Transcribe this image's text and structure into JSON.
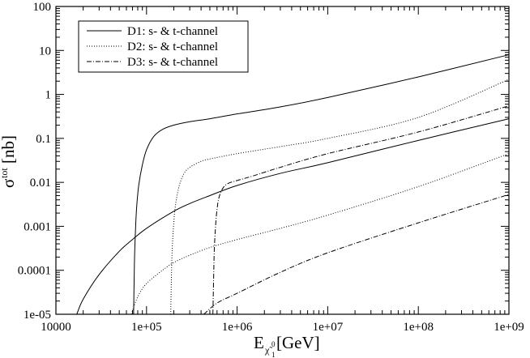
{
  "chart_data": {
    "type": "line",
    "title": "",
    "xlabel": {
      "main": "E",
      "subscript": "χ̃",
      "subsubscript": "1",
      "superscript": "0",
      "unit": "[GeV]"
    },
    "ylabel": {
      "main": "σ",
      "superscript": "tot",
      "unit": "[nb]"
    },
    "xscale": "log",
    "yscale": "log",
    "xlim": [
      10000,
      1000000000
    ],
    "ylim": [
      1e-05,
      100
    ],
    "grid": false,
    "legend_position": "top-left",
    "x_ticks": [
      {
        "value": 10000,
        "label": "10000"
      },
      {
        "value": 100000,
        "label": "1e+05"
      },
      {
        "value": 1000000,
        "label": "1e+06"
      },
      {
        "value": 10000000,
        "label": "1e+07"
      },
      {
        "value": 100000000,
        "label": "1e+08"
      },
      {
        "value": 1000000000,
        "label": "1e+09"
      }
    ],
    "y_ticks": [
      {
        "value": 1e-05,
        "label": "1e-05"
      },
      {
        "value": 0.0001,
        "label": "0.0001"
      },
      {
        "value": 0.001,
        "label": "0.001"
      },
      {
        "value": 0.01,
        "label": "0.01"
      },
      {
        "value": 0.1,
        "label": "0.1"
      },
      {
        "value": 1,
        "label": "1"
      },
      {
        "value": 10,
        "label": "10"
      },
      {
        "value": 100,
        "label": "100"
      }
    ],
    "legend": [
      {
        "label": "D1: s- & t-channel",
        "style": "solid"
      },
      {
        "label": "D2: s- & t-channel",
        "style": "dotted"
      },
      {
        "label": "D3: s- & t-channel",
        "style": "dashdot"
      }
    ],
    "series": [
      {
        "style": "solid",
        "x": [
          72000,
          73000,
          74000,
          76000,
          78000,
          82000,
          90000,
          100000,
          120000,
          150000,
          200000,
          300000,
          500000,
          1000000,
          3000000,
          10000000,
          100000000,
          1000000000
        ],
        "y": [
          1e-05,
          6e-05,
          0.00025,
          0.0011,
          0.0029,
          0.0085,
          0.025,
          0.055,
          0.11,
          0.16,
          0.2,
          0.24,
          0.28,
          0.36,
          0.52,
          0.85,
          2.5,
          8
        ]
      },
      {
        "style": "solid",
        "x": [
          17000,
          20000,
          30000,
          50000,
          70000,
          100000,
          200000,
          300000,
          500000,
          1000000,
          3000000,
          10000000,
          100000000,
          1000000000
        ],
        "y": [
          1e-05,
          2.2e-05,
          8e-05,
          0.00027,
          0.0005,
          0.0009,
          0.0022,
          0.0033,
          0.005,
          0.0085,
          0.016,
          0.028,
          0.09,
          0.28
        ]
      },
      {
        "style": "dotted",
        "x": [
          185000,
          188000,
          192000,
          200000,
          210000,
          230000,
          260000,
          300000,
          400000,
          500000,
          1000000,
          3000000,
          10000000,
          100000000,
          1000000000
        ],
        "y": [
          1e-05,
          6e-05,
          0.0003,
          0.0012,
          0.0033,
          0.0085,
          0.016,
          0.022,
          0.03,
          0.034,
          0.045,
          0.065,
          0.1,
          0.3,
          2.2
        ]
      },
      {
        "style": "dotted",
        "x": [
          68000,
          80000,
          100000,
          150000,
          200000,
          300000,
          500000,
          1000000,
          3000000,
          10000000,
          100000000,
          1000000000
        ],
        "y": [
          1e-05,
          2.5e-05,
          5e-05,
          0.0001,
          0.00015,
          0.00022,
          0.00033,
          0.0005,
          0.0009,
          0.0018,
          0.008,
          0.045
        ]
      },
      {
        "style": "dashdot",
        "x": [
          540000,
          550000,
          560000,
          580000,
          600000,
          630000,
          700000,
          800000,
          1000000,
          1500000,
          3000000,
          10000000,
          100000000,
          1000000000
        ],
        "y": [
          1e-05,
          6e-05,
          0.0003,
          0.0011,
          0.0024,
          0.0045,
          0.0075,
          0.0095,
          0.011,
          0.014,
          0.022,
          0.045,
          0.14,
          0.55
        ]
      },
      {
        "style": "dashdot",
        "x": [
          430000,
          600000,
          1000000,
          3000000,
          10000000,
          100000000,
          1000000000
        ],
        "y": [
          1e-05,
          1.8e-05,
          3e-05,
          9e-05,
          0.00025,
          0.0012,
          0.0053
        ]
      }
    ]
  }
}
